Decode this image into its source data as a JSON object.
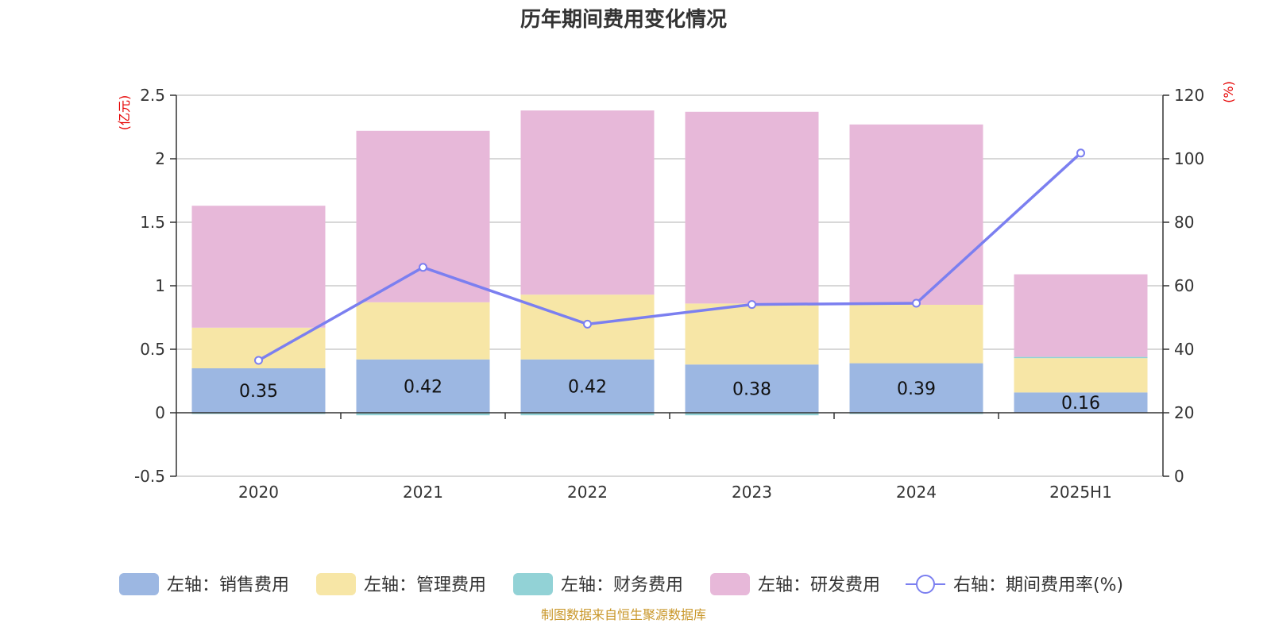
{
  "chart_data": {
    "type": "bar",
    "title": "历年期间费用变化情况",
    "categories": [
      "2020",
      "2021",
      "2022",
      "2023",
      "2024",
      "2025H1"
    ],
    "left_axis": {
      "unit_label": "(亿元)",
      "ylim": [
        -0.5,
        2.5
      ],
      "ticks": [
        "-0.5",
        "0",
        "0.5",
        "1",
        "1.5",
        "2",
        "2.5"
      ]
    },
    "right_axis": {
      "unit_label": "(%)",
      "ylim": [
        0,
        120
      ],
      "ticks": [
        "0",
        "20",
        "40",
        "60",
        "80",
        "100",
        "120"
      ]
    },
    "grid": true,
    "legend_position": "bottom",
    "series": [
      {
        "name": "左轴：销售费用",
        "kind": "bar",
        "axis": "left",
        "color": "#9cb7e2",
        "values": [
          0.35,
          0.42,
          0.42,
          0.38,
          0.39,
          0.16
        ],
        "data_labels": [
          "0.35",
          "0.42",
          "0.42",
          "0.38",
          "0.39",
          "0.16"
        ]
      },
      {
        "name": "左轴：管理费用",
        "kind": "bar",
        "axis": "left",
        "color": "#f7e6a6",
        "values": [
          0.32,
          0.45,
          0.51,
          0.48,
          0.46,
          0.27
        ]
      },
      {
        "name": "左轴：财务费用",
        "kind": "bar",
        "axis": "left",
        "color": "#92d2d6",
        "values": [
          -0.01,
          -0.02,
          -0.02,
          -0.02,
          -0.01,
          0.01
        ]
      },
      {
        "name": "左轴：研发费用",
        "kind": "bar",
        "axis": "left",
        "color": "#e7b8d9",
        "values": [
          0.96,
          1.35,
          1.45,
          1.51,
          1.42,
          0.65
        ]
      },
      {
        "name": "右轴：期间费用率(%)",
        "kind": "line",
        "axis": "right",
        "color": "#7b7ff0",
        "values": [
          36.5,
          65.8,
          47.9,
          54.1,
          54.5,
          101.8
        ]
      }
    ]
  },
  "footer": {
    "source": "制图数据来自恒生聚源数据库"
  }
}
